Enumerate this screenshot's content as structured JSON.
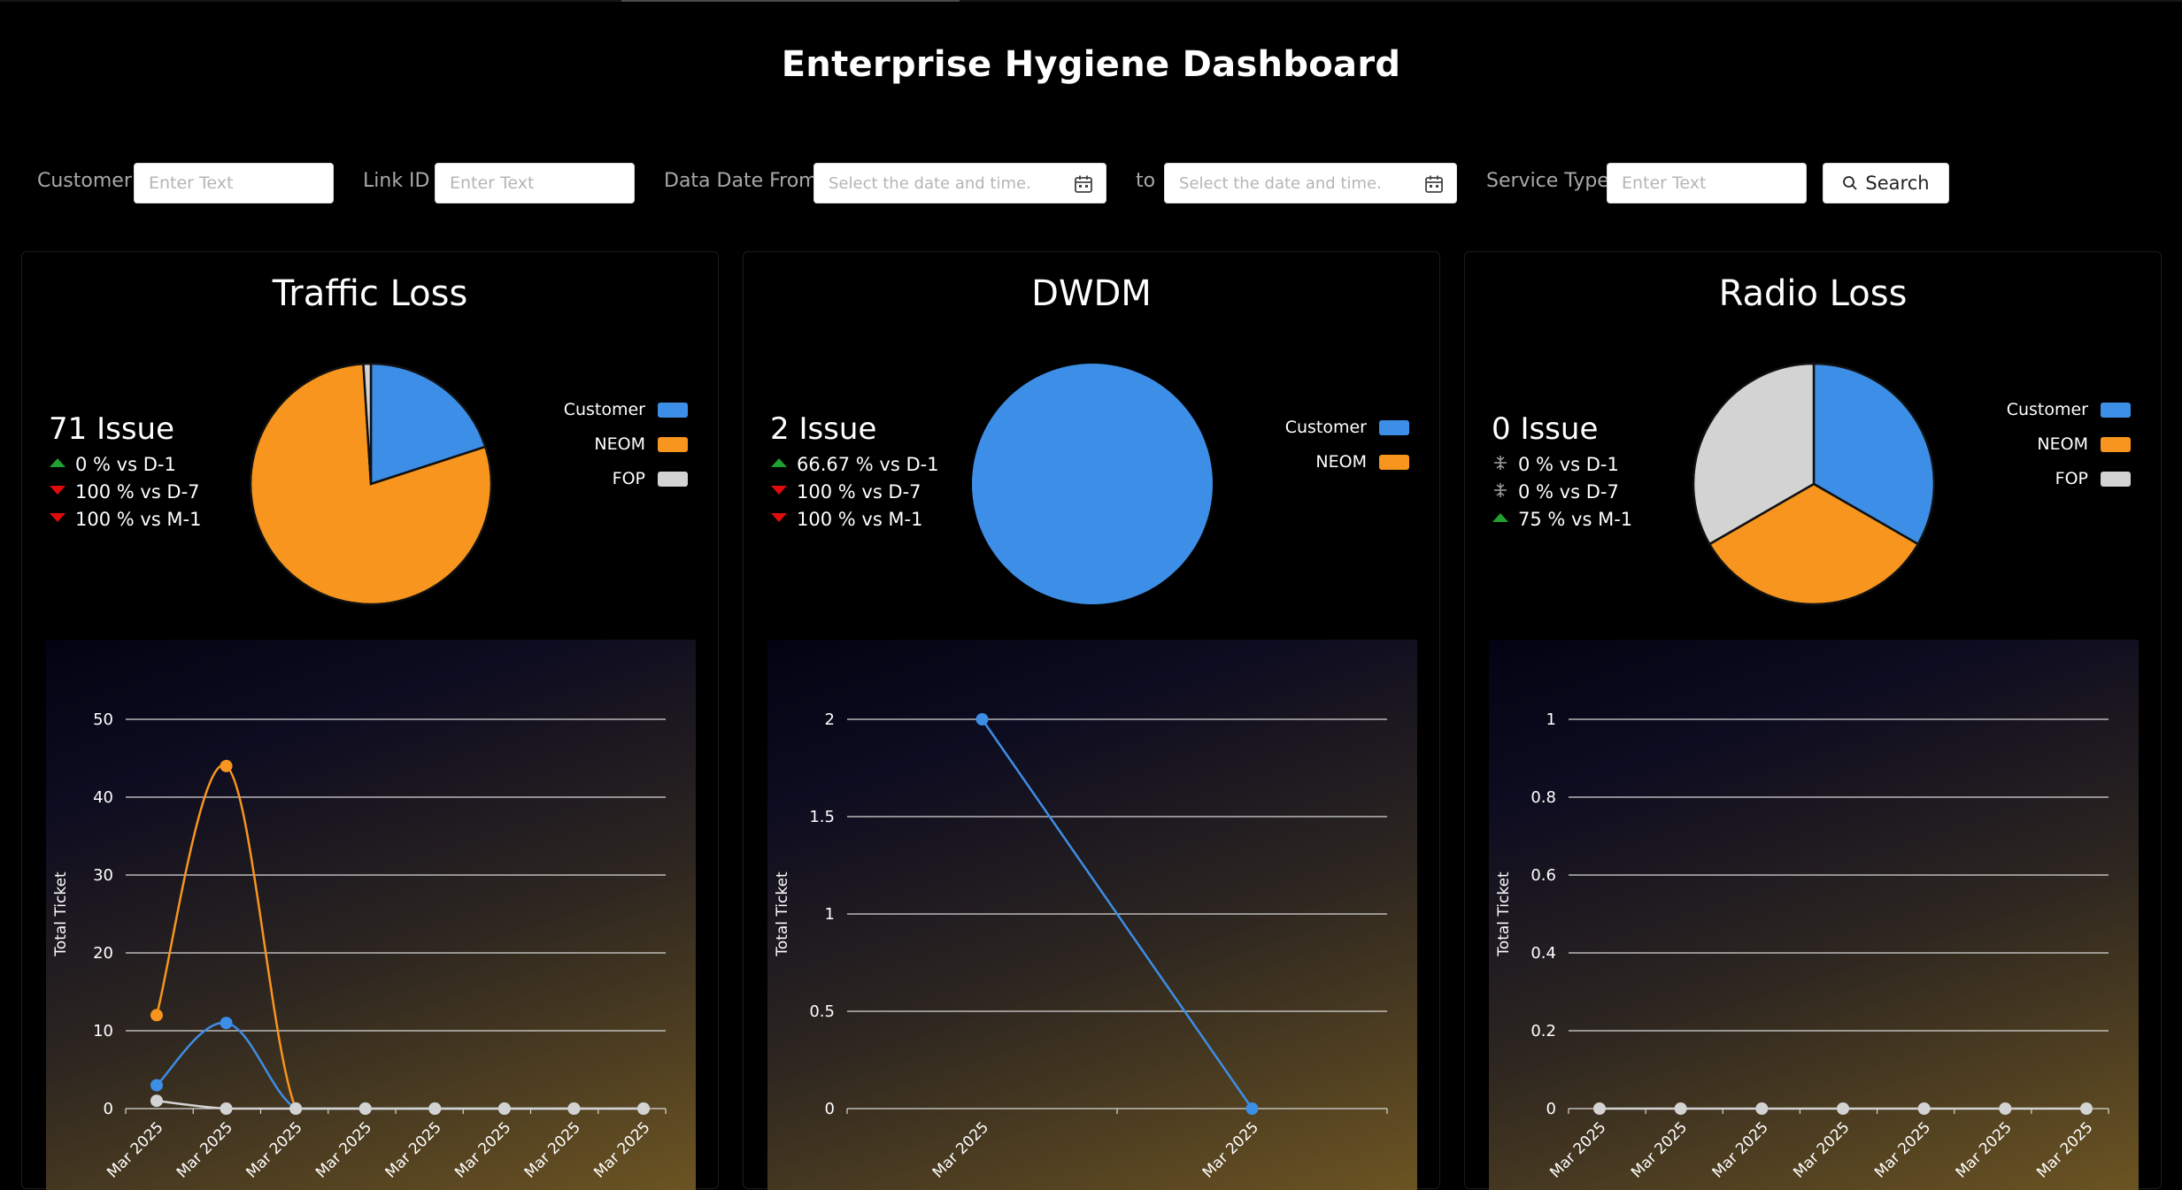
{
  "page_title": "Enterprise Hygiene Dashboard",
  "filters": {
    "customer_label": "Customer",
    "customer_placeholder": "Enter Text",
    "link_label": "Link ID",
    "link_placeholder": "Enter Text",
    "date_from_label": "Data Date From",
    "date_placeholder": "Select the date and time.",
    "to_label": "to",
    "service_label": "Service Type",
    "service_placeholder": "Enter Text",
    "search_label": "Search"
  },
  "colors": {
    "customer": "#3d8ee6",
    "neom": "#f7951e",
    "fop": "#d3d3d3",
    "up": "#1fa02f",
    "down": "#e00c0c",
    "neutral": "#9a9a9a"
  },
  "cards": [
    {
      "title": "Traffic Loss",
      "issue": "71 Issue",
      "deltas": [
        {
          "dir": "up",
          "text": "0 % vs D-1"
        },
        {
          "dir": "down",
          "text": "100 % vs D-7"
        },
        {
          "dir": "down",
          "text": "100 % vs M-1"
        }
      ]
    },
    {
      "title": "DWDM",
      "issue": "2 Issue",
      "deltas": [
        {
          "dir": "up",
          "text": "66.67 % vs D-1"
        },
        {
          "dir": "down",
          "text": "100 % vs D-7"
        },
        {
          "dir": "down",
          "text": "100 % vs M-1"
        }
      ]
    },
    {
      "title": "Radio Loss",
      "issue": "0 Issue",
      "deltas": [
        {
          "dir": "neutral",
          "text": "0 % vs D-1"
        },
        {
          "dir": "neutral",
          "text": "0 % vs D-7"
        },
        {
          "dir": "up",
          "text": "75 % vs M-1"
        }
      ]
    }
  ],
  "chart_data": [
    {
      "type": "pie",
      "legend": [
        "Customer",
        "NEOM",
        "FOP"
      ],
      "values": [
        20,
        79,
        1
      ]
    },
    {
      "type": "pie",
      "legend": [
        "Customer",
        "NEOM"
      ],
      "values": [
        2,
        0
      ]
    },
    {
      "type": "pie",
      "legend": [
        "Customer",
        "NEOM",
        "FOP"
      ],
      "values": [
        1,
        1,
        1
      ]
    },
    {
      "type": "line",
      "ylabel": "Total Ticket",
      "ylim": [
        0,
        50
      ],
      "yticks": [
        0,
        10,
        20,
        30,
        40,
        50
      ],
      "categories": [
        "Mar 2025",
        "Mar 2025",
        "Mar 2025",
        "Mar 2025",
        "Mar 2025",
        "Mar 2025",
        "Mar 2025",
        "Mar 2025"
      ],
      "series": [
        {
          "color": "#f7951e",
          "values": [
            12,
            44,
            0,
            0,
            0,
            0,
            0,
            0
          ]
        },
        {
          "color": "#3d8ee6",
          "values": [
            3,
            11,
            0,
            0,
            0,
            0,
            0,
            0
          ]
        },
        {
          "color": "#d3d3d3",
          "values": [
            1,
            0,
            0,
            0,
            0,
            0,
            0,
            0
          ]
        }
      ]
    },
    {
      "type": "line",
      "ylabel": "Total Ticket",
      "ylim": [
        0,
        2
      ],
      "yticks": [
        0,
        0.5,
        1,
        1.5,
        2
      ],
      "categories": [
        "Mar 2025",
        "Mar 2025"
      ],
      "series": [
        {
          "color": "#3d8ee6",
          "values": [
            2,
            0
          ]
        }
      ]
    },
    {
      "type": "line",
      "ylabel": "Total Ticket",
      "ylim": [
        0,
        1
      ],
      "yticks": [
        0,
        0.2,
        0.4,
        0.6,
        0.8,
        1
      ],
      "categories": [
        "Mar 2025",
        "Mar 2025",
        "Mar 2025",
        "Mar 2025",
        "Mar 2025",
        "Mar 2025",
        "Mar 2025"
      ],
      "series": [
        {
          "color": "#d3d3d3",
          "values": [
            0,
            0,
            0,
            0,
            0,
            0,
            0
          ]
        }
      ]
    }
  ]
}
